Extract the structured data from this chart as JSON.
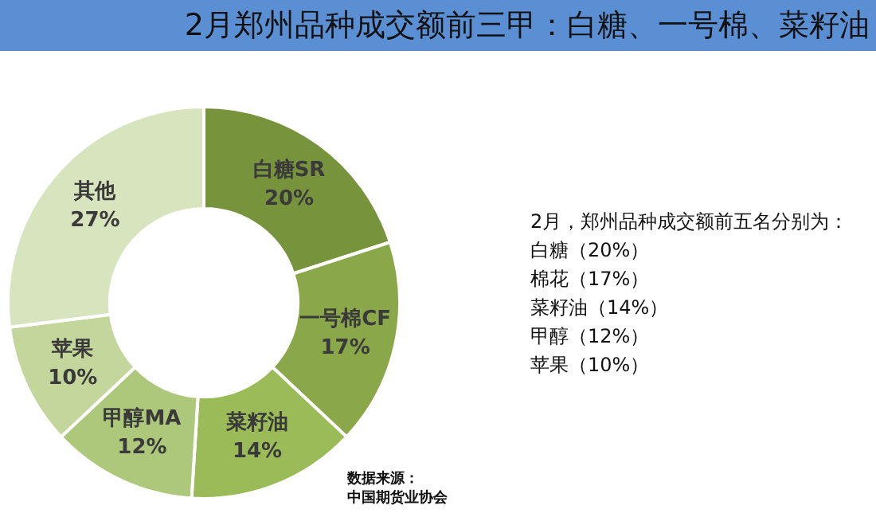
{
  "chart_data": {
    "type": "donut",
    "title": "2月郑州品种成交额前三甲：白糖、一号棉、菜籽油",
    "categories": [
      "白糖SR",
      "一号棉CF",
      "菜籽油",
      "甲醇MA",
      "苹果",
      "其他"
    ],
    "values": [
      20,
      17,
      14,
      12,
      10,
      27
    ],
    "value_labels": [
      "20%",
      "17%",
      "14%",
      "12%",
      "10%",
      "27%"
    ],
    "colors": [
      "#77933c",
      "#8aa84a",
      "#9bbb59",
      "#adc87a",
      "#c3d69b",
      "#d7e4bd"
    ],
    "legend": false,
    "annotations": [
      "2月，郑州品种成交额前五名分别为：",
      "白糖（20%）",
      "棉花（17%）",
      "菜籽油（14%）",
      "甲醇（12%）",
      "苹果（10%）",
      "数据来源：",
      "中国期货业协会"
    ]
  }
}
